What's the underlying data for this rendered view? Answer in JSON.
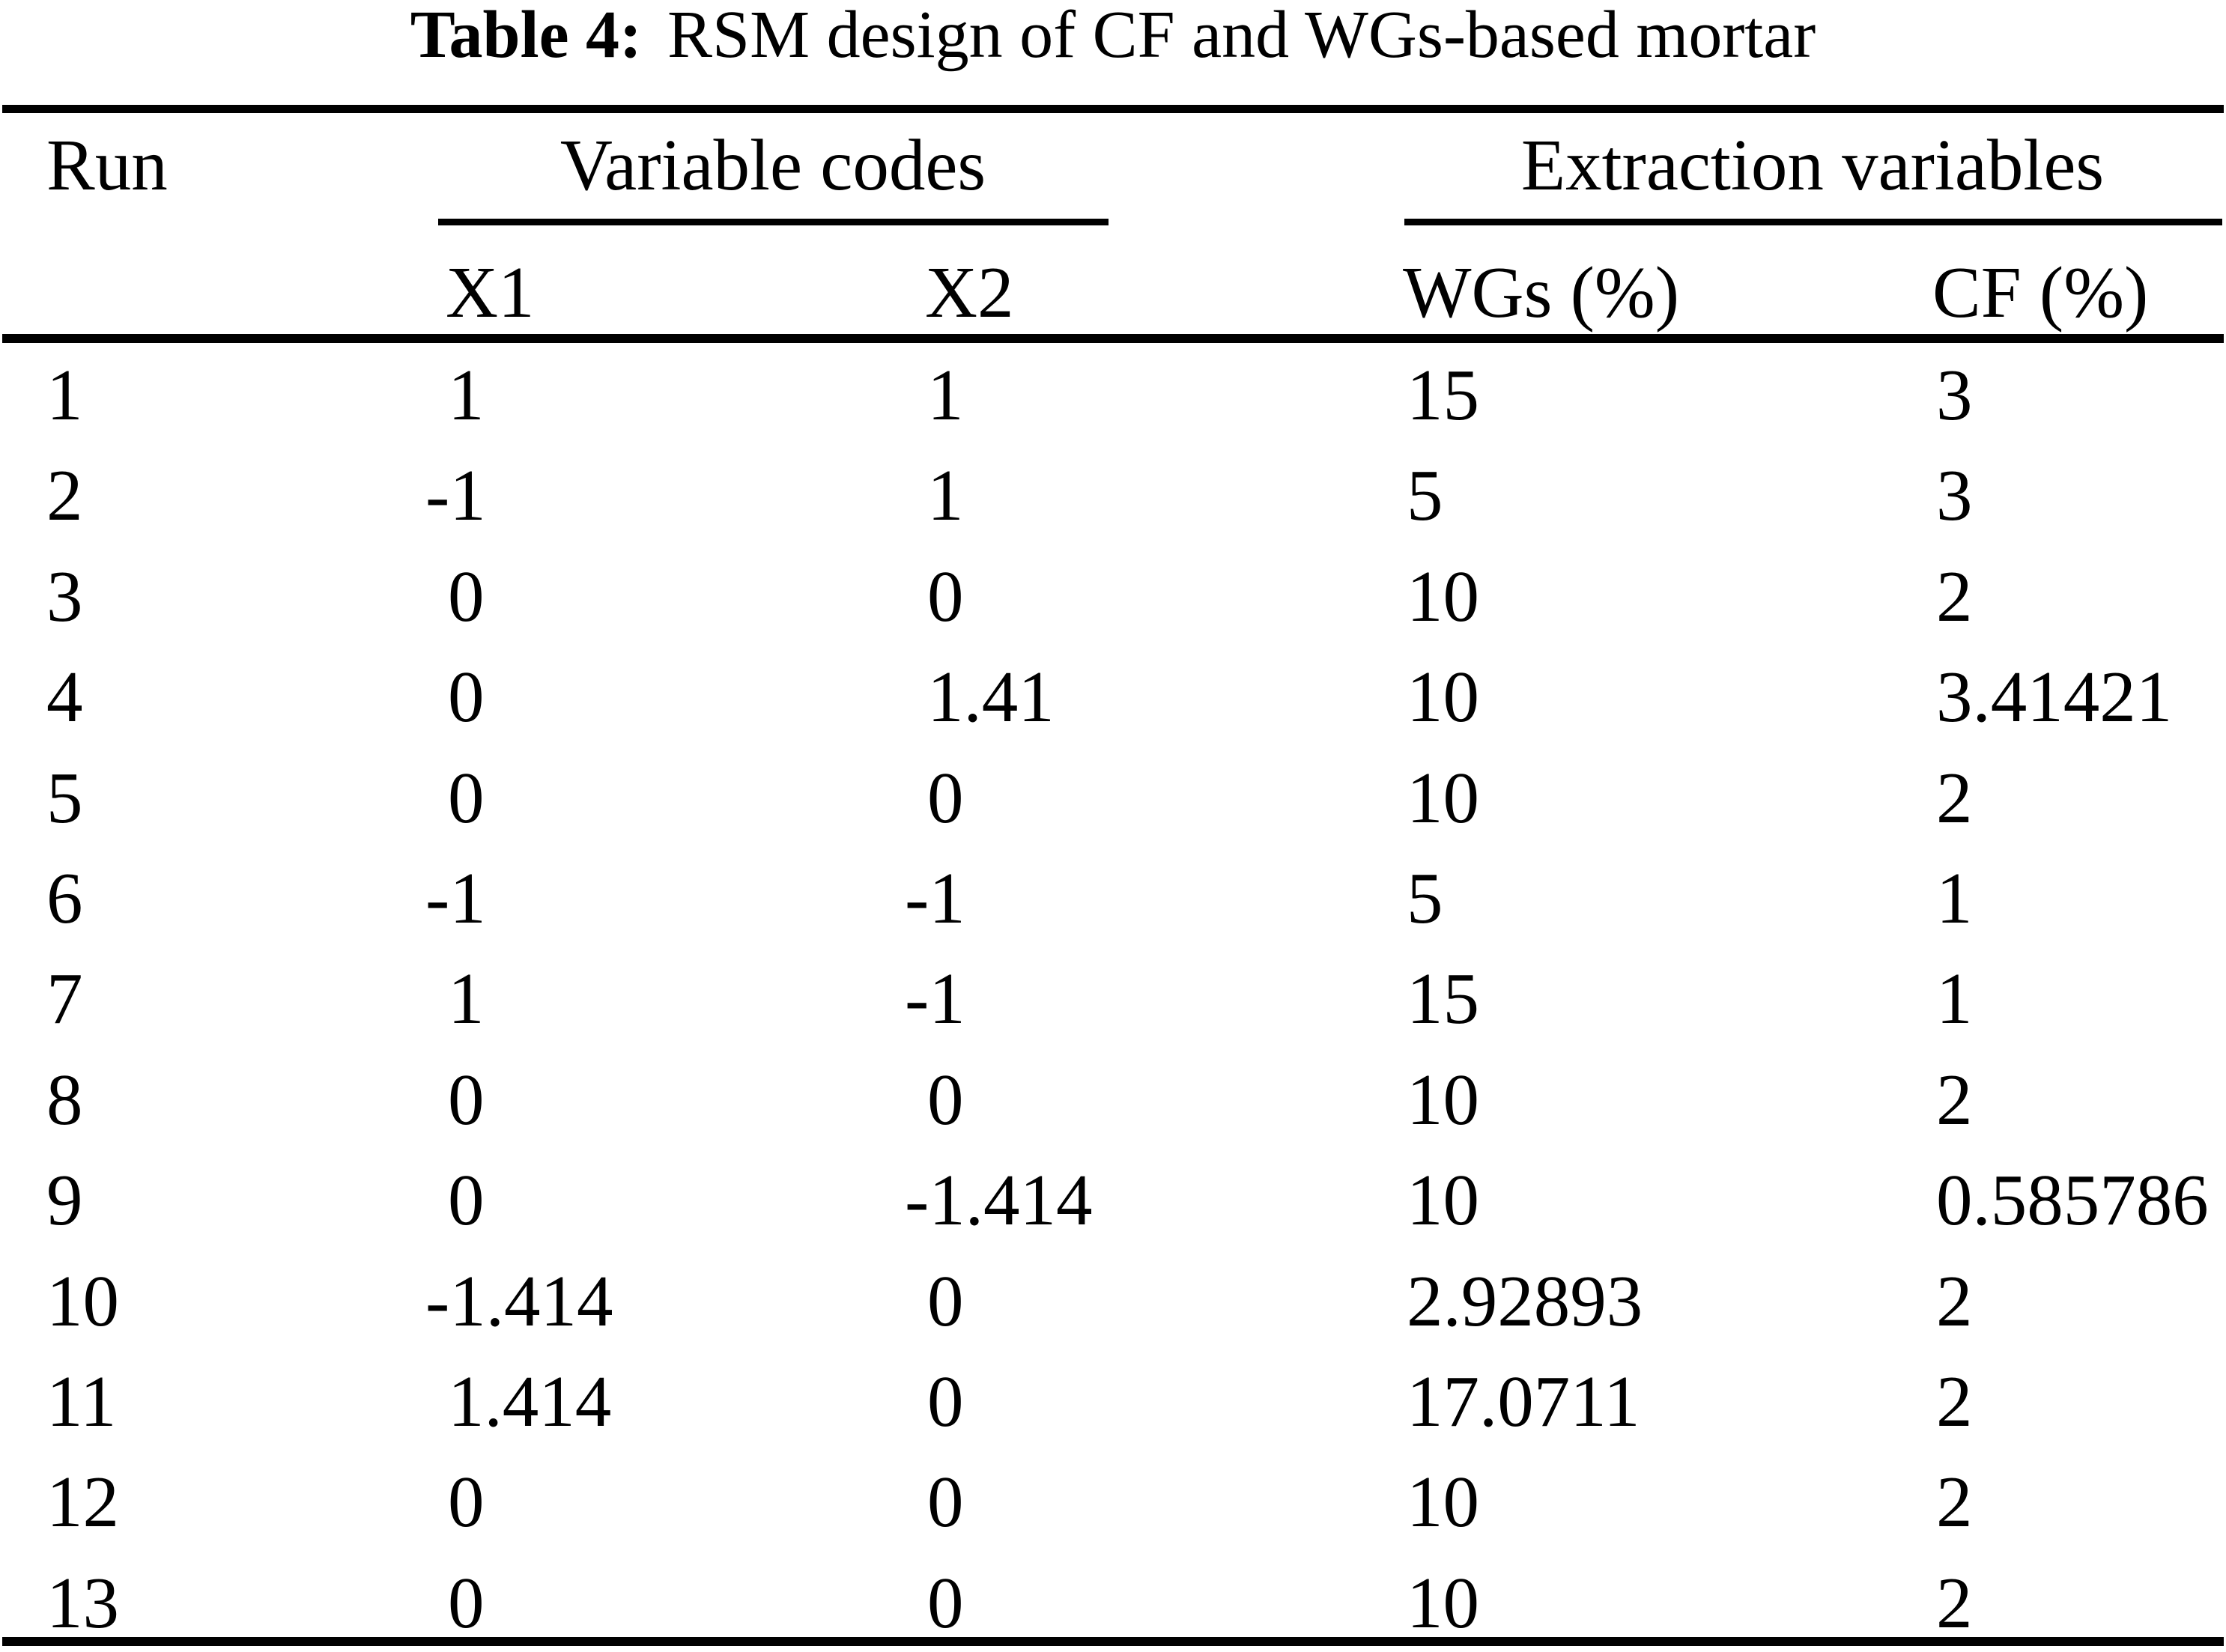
{
  "page": {
    "background_color": "#ffffff",
    "text_color": "#000000"
  },
  "title": {
    "label": "Table 4:",
    "text": "RSM design of CF and WGs-based mortar"
  },
  "table": {
    "row_header": "Run",
    "column_groups": [
      {
        "label": "Variable codes",
        "columns": [
          "X1",
          "X2"
        ]
      },
      {
        "label": "Extraction variables",
        "columns": [
          "WGs (%)",
          "CF (%)"
        ]
      }
    ],
    "rows": [
      [
        "1",
        "1",
        "1",
        "15",
        "3"
      ],
      [
        "2",
        "-1",
        "1",
        "5",
        "3"
      ],
      [
        "3",
        "0",
        "0",
        "10",
        "2"
      ],
      [
        "4",
        "0",
        "1.41",
        "10",
        "3.41421"
      ],
      [
        "5",
        "0",
        "0",
        "10",
        "2"
      ],
      [
        "6",
        "-1",
        "-1",
        "5",
        "1"
      ],
      [
        "7",
        "1",
        "-1",
        "15",
        "1"
      ],
      [
        "8",
        "0",
        "0",
        "10",
        "2"
      ],
      [
        "9",
        "0",
        "-1.414",
        "10",
        "0.585786"
      ],
      [
        "10",
        "-1.414",
        "0",
        "2.92893",
        "2"
      ],
      [
        "11",
        "1.414",
        "0",
        "17.0711",
        "2"
      ],
      [
        "12",
        "0",
        "0",
        "10",
        "2"
      ],
      [
        "13",
        "0",
        "0",
        "10",
        "2"
      ]
    ]
  }
}
